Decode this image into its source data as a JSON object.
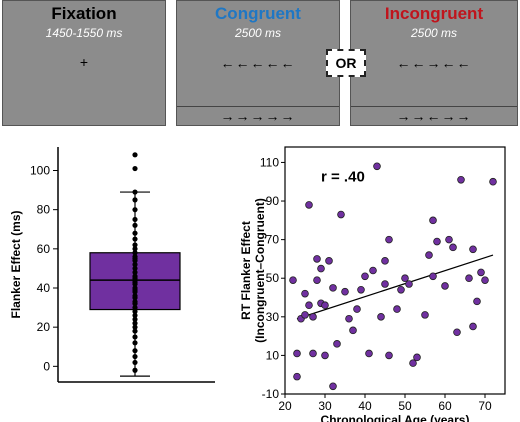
{
  "top": {
    "fixation": {
      "title": "Fixation",
      "duration": "1450-1550 ms",
      "cross": "+"
    },
    "congruent": {
      "title": "Congruent",
      "duration": "2500 ms",
      "arrows_top": "←←←←←",
      "arrows_bottom": "→→→→→",
      "color": "#1f77c4"
    },
    "or_label": "OR",
    "incongruent": {
      "title": "Incongruent",
      "duration": "2500 ms",
      "arrows_top": "←←→←←",
      "arrows_bottom": "→→←→→",
      "color": "#c0141c"
    }
  },
  "chart_data": [
    {
      "type": "box",
      "ylabel": "Flanker Effect (ms)",
      "ylim": [
        -8,
        112
      ],
      "yticks": [
        0,
        20,
        40,
        60,
        80,
        100
      ],
      "color": "#7030a0",
      "box": {
        "min": -5,
        "q1": 29,
        "median": 44,
        "q3": 58,
        "max": 89
      },
      "points": [
        -2,
        2,
        5,
        8,
        12,
        15,
        18,
        20,
        22,
        24,
        26,
        28,
        30,
        32,
        33,
        35,
        36,
        38,
        39,
        40,
        42,
        43,
        44,
        45,
        46,
        48,
        50,
        52,
        54,
        55,
        56,
        58,
        60,
        62,
        65,
        68,
        72,
        75,
        80,
        85,
        89,
        101,
        108
      ]
    },
    {
      "type": "scatter",
      "xlabel": "Chronological Age (years)",
      "ylabel": "RT Flanker Effect\n(Incongruent–Congruent)",
      "annotation": "r = .40",
      "xlim": [
        20,
        75
      ],
      "ylim": [
        -10,
        118
      ],
      "xticks": [
        20,
        30,
        40,
        50,
        60,
        70
      ],
      "yticks": [
        -10,
        10,
        30,
        50,
        70,
        90,
        110
      ],
      "color": "#7030a0",
      "trend": {
        "x": [
          23,
          72
        ],
        "y": [
          29,
          62
        ]
      },
      "points": [
        {
          "x": 22,
          "y": 49
        },
        {
          "x": 23,
          "y": -1
        },
        {
          "x": 23,
          "y": 11
        },
        {
          "x": 24,
          "y": 29
        },
        {
          "x": 25,
          "y": 42
        },
        {
          "x": 25,
          "y": 31
        },
        {
          "x": 26,
          "y": 36
        },
        {
          "x": 26,
          "y": 88
        },
        {
          "x": 27,
          "y": 11
        },
        {
          "x": 27,
          "y": 30
        },
        {
          "x": 28,
          "y": 49
        },
        {
          "x": 28,
          "y": 60
        },
        {
          "x": 29,
          "y": 37
        },
        {
          "x": 29,
          "y": 55
        },
        {
          "x": 30,
          "y": 36
        },
        {
          "x": 30,
          "y": 10
        },
        {
          "x": 31,
          "y": 59
        },
        {
          "x": 32,
          "y": 45
        },
        {
          "x": 32,
          "y": -6
        },
        {
          "x": 33,
          "y": 16
        },
        {
          "x": 34,
          "y": 83
        },
        {
          "x": 35,
          "y": 43
        },
        {
          "x": 36,
          "y": 29
        },
        {
          "x": 37,
          "y": 23
        },
        {
          "x": 38,
          "y": 34
        },
        {
          "x": 39,
          "y": 44
        },
        {
          "x": 40,
          "y": 51
        },
        {
          "x": 41,
          "y": 11
        },
        {
          "x": 42,
          "y": 54
        },
        {
          "x": 43,
          "y": 108
        },
        {
          "x": 44,
          "y": 30
        },
        {
          "x": 45,
          "y": 47
        },
        {
          "x": 45,
          "y": 59
        },
        {
          "x": 46,
          "y": 70
        },
        {
          "x": 46,
          "y": 10
        },
        {
          "x": 48,
          "y": 34
        },
        {
          "x": 49,
          "y": 44
        },
        {
          "x": 50,
          "y": 50
        },
        {
          "x": 51,
          "y": 47
        },
        {
          "x": 52,
          "y": 6
        },
        {
          "x": 53,
          "y": 9
        },
        {
          "x": 55,
          "y": 31
        },
        {
          "x": 56,
          "y": 62
        },
        {
          "x": 57,
          "y": 51
        },
        {
          "x": 57,
          "y": 80
        },
        {
          "x": 58,
          "y": 69
        },
        {
          "x": 60,
          "y": 46
        },
        {
          "x": 61,
          "y": 70
        },
        {
          "x": 62,
          "y": 66
        },
        {
          "x": 63,
          "y": 22
        },
        {
          "x": 64,
          "y": 101
        },
        {
          "x": 66,
          "y": 50
        },
        {
          "x": 67,
          "y": 25
        },
        {
          "x": 67,
          "y": 65
        },
        {
          "x": 68,
          "y": 38
        },
        {
          "x": 69,
          "y": 53
        },
        {
          "x": 70,
          "y": 49
        },
        {
          "x": 72,
          "y": 100
        }
      ]
    }
  ]
}
